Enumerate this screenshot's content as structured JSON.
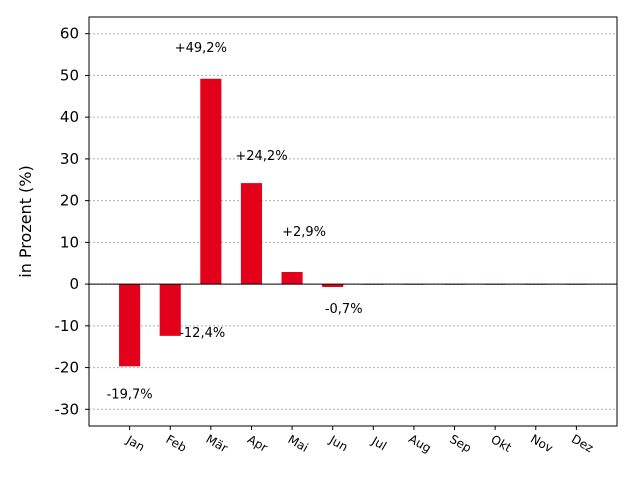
{
  "chart_data": {
    "type": "bar",
    "categories": [
      "Jan",
      "Feb",
      "Mär",
      "Apr",
      "Mai",
      "Jun",
      "Jul",
      "Aug",
      "Sep",
      "Okt",
      "Nov",
      "Dez"
    ],
    "values": [
      -19.7,
      -12.4,
      49.2,
      24.2,
      2.9,
      -0.7,
      0,
      0,
      0,
      0,
      0,
      0
    ],
    "data_labels": [
      "-19,7%",
      "-12,4%",
      "+49,2%",
      "+24,2%",
      "+2,9%",
      "-0,7%",
      "",
      "",
      "",
      "",
      "",
      ""
    ],
    "title": "",
    "xlabel": "",
    "ylabel": "in Prozent (%)",
    "ylim": [
      -34,
      64
    ],
    "yticks": [
      -30,
      -20,
      -10,
      0,
      10,
      20,
      30,
      40,
      50,
      60
    ],
    "ytick_labels": [
      "-30",
      "-20",
      "-10",
      "0",
      "10",
      "20",
      "30",
      "40",
      "50",
      "60"
    ],
    "grid": true,
    "grid_axis": "y",
    "bar_color": "#e2001a",
    "zero_line": true
  }
}
